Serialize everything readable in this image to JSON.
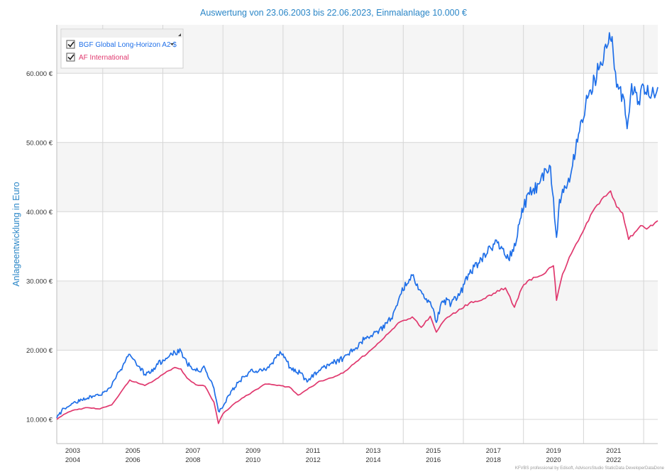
{
  "chart_data": {
    "type": "line",
    "title": "Auswertung von 23.06.2003 bis 22.06.2023, Einmalanlage 10.000 €",
    "ylabel": "Anlageentwicklung  in Euro",
    "xlabel": "",
    "xlim": [
      2003.47,
      2023.47
    ],
    "ylim": [
      6500,
      67000
    ],
    "yticks": [
      10000,
      20000,
      30000,
      40000,
      50000,
      60000
    ],
    "ytick_labels": [
      "10.000 €",
      "20.000 €",
      "30.000 €",
      "40.000 €",
      "50.000 €",
      "60.000 €"
    ],
    "xtick_labels_top": [
      "2003",
      "2005",
      "2007",
      "2009",
      "2011",
      "2013",
      "2015",
      "2017",
      "2019",
      "2021"
    ],
    "xtick_labels_bottom": [
      "2004",
      "2006",
      "2008",
      "2010",
      "2012",
      "2014",
      "2016",
      "2018",
      "2020",
      "2022"
    ],
    "legend_position": "top-left",
    "series": [
      {
        "name": "BGF Global Long-Horizon A2 $",
        "color": "#1f6fe8",
        "checked": true,
        "has_dropdown": true,
        "x": [
          2003.47,
          2003.7,
          2004.0,
          2004.5,
          2004.9,
          2005.3,
          2005.6,
          2005.9,
          2006.4,
          2006.7,
          2007.0,
          2007.4,
          2007.6,
          2007.8,
          2008.1,
          2008.4,
          2008.7,
          2008.85,
          2009.0,
          2009.2,
          2009.5,
          2009.9,
          2010.3,
          2010.6,
          2010.9,
          2011.3,
          2011.6,
          2011.8,
          2012.2,
          2012.6,
          2013.0,
          2013.4,
          2013.8,
          2014.2,
          2014.6,
          2014.9,
          2015.3,
          2015.6,
          2015.9,
          2016.1,
          2016.3,
          2016.6,
          2016.9,
          2017.2,
          2017.5,
          2017.8,
          2018.1,
          2018.5,
          2018.8,
          2018.95,
          2019.2,
          2019.5,
          2019.9,
          2020.1,
          2020.2,
          2020.4,
          2020.6,
          2020.9,
          2021.2,
          2021.5,
          2021.8,
          2021.95,
          2022.1,
          2022.3,
          2022.45,
          2022.6,
          2022.8,
          2023.0,
          2023.2,
          2023.47
        ],
        "values": [
          10200,
          11600,
          12300,
          13100,
          13500,
          14900,
          17200,
          19400,
          16500,
          17400,
          18600,
          19700,
          19900,
          18100,
          17000,
          17400,
          14500,
          11200,
          11800,
          13500,
          15300,
          16900,
          17000,
          18000,
          19800,
          17100,
          16700,
          15400,
          17100,
          18100,
          18800,
          20200,
          22000,
          22900,
          24600,
          28000,
          30800,
          28500,
          27000,
          24000,
          27100,
          26800,
          28300,
          31000,
          32600,
          34000,
          35900,
          33200,
          36500,
          40500,
          42500,
          44000,
          46500,
          36300,
          41800,
          43500,
          46000,
          53000,
          57500,
          60500,
          64000,
          65300,
          58000,
          57000,
          52000,
          58500,
          55500,
          58200,
          56500,
          58000
        ]
      },
      {
        "name": "AF International",
        "color": "#e0386e",
        "checked": true,
        "has_dropdown": false,
        "x": [
          2003.47,
          2003.7,
          2004.0,
          2004.5,
          2004.9,
          2005.3,
          2005.6,
          2005.9,
          2006.4,
          2006.7,
          2007.0,
          2007.4,
          2007.6,
          2007.8,
          2008.1,
          2008.4,
          2008.7,
          2008.85,
          2009.0,
          2009.3,
          2009.7,
          2010.1,
          2010.4,
          2010.8,
          2011.2,
          2011.5,
          2011.8,
          2012.2,
          2012.6,
          2013.0,
          2013.5,
          2014.0,
          2014.5,
          2014.9,
          2015.3,
          2015.6,
          2015.9,
          2016.1,
          2016.4,
          2016.8,
          2017.2,
          2017.6,
          2018.0,
          2018.4,
          2018.7,
          2018.95,
          2019.2,
          2019.6,
          2020.0,
          2020.1,
          2020.3,
          2020.6,
          2020.9,
          2021.3,
          2021.6,
          2021.9,
          2022.1,
          2022.3,
          2022.5,
          2022.7,
          2022.9,
          2023.1,
          2023.3,
          2023.47
        ],
        "values": [
          10000,
          10700,
          11300,
          11700,
          11500,
          12100,
          13900,
          15700,
          14900,
          15600,
          16500,
          17500,
          17300,
          16000,
          15000,
          14800,
          12500,
          9400,
          10800,
          12000,
          13200,
          14300,
          15100,
          14900,
          14700,
          13500,
          14300,
          15500,
          16000,
          16700,
          18500,
          20300,
          22400,
          24100,
          24800,
          23300,
          24900,
          22600,
          24500,
          25600,
          26800,
          27200,
          28200,
          29000,
          26200,
          29000,
          30200,
          30800,
          32200,
          27200,
          31000,
          34000,
          36500,
          40000,
          41800,
          43000,
          40700,
          39800,
          36000,
          37000,
          38000,
          37500,
          38000,
          38700
        ]
      }
    ]
  },
  "footer": "KFVBS professional by Edisoft, AdvisorsStudio StaticData DeveloperDataDone"
}
